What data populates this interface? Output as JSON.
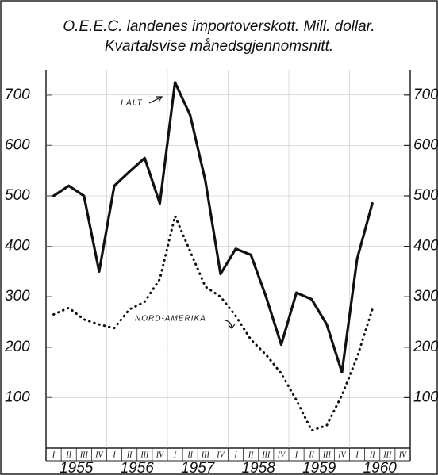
{
  "chart_data": {
    "type": "line",
    "title": "O.E.E.C. landenes  importoverskott.  Mill. dollar.",
    "subtitle": "Kvartalsvise  månedsgjennomsnitt.",
    "categories": [
      "I",
      "II",
      "III",
      "IV",
      "I",
      "II",
      "III",
      "IV",
      "I",
      "II",
      "III",
      "IV",
      "I",
      "II",
      "III",
      "IV",
      "I",
      "II",
      "III",
      "IV",
      "I",
      "II",
      "III",
      "IV"
    ],
    "years": [
      "1955",
      "1956",
      "1957",
      "1958",
      "1959",
      "1960"
    ],
    "series": [
      {
        "name": "I ALT",
        "color": "#111111",
        "style": "solid",
        "values": [
          500,
          520,
          500,
          350,
          520,
          548,
          575,
          485,
          725,
          660,
          530,
          345,
          395,
          383,
          300,
          205,
          308,
          295,
          245,
          150,
          375,
          485,
          null,
          null
        ]
      },
      {
        "name": "NORD-AMERIKA",
        "color": "#111111",
        "style": "dotted",
        "values": [
          265,
          278,
          255,
          245,
          238,
          275,
          290,
          335,
          460,
          390,
          320,
          300,
          262,
          215,
          185,
          148,
          95,
          35,
          45,
          105,
          180,
          275,
          null,
          null
        ]
      }
    ],
    "ylim": [
      0,
      750
    ],
    "yticks": [
      100,
      200,
      300,
      400,
      500,
      600,
      700
    ],
    "y2lim": [
      0,
      750
    ],
    "y2ticks": [
      100,
      200,
      300,
      400,
      500,
      600,
      700
    ],
    "grid": true
  }
}
